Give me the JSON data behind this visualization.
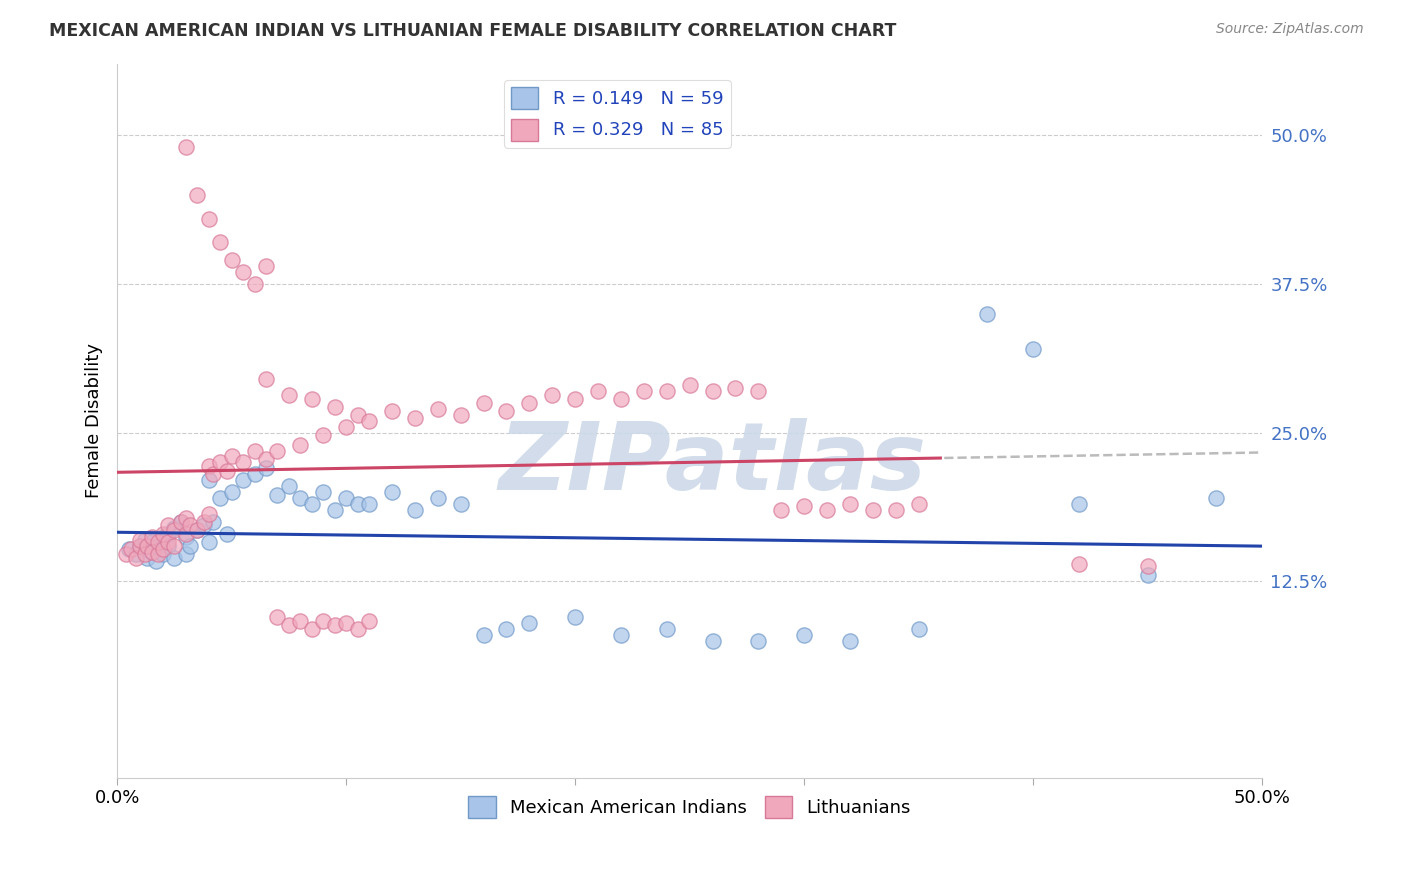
{
  "title": "MEXICAN AMERICAN INDIAN VS LITHUANIAN FEMALE DISABILITY CORRELATION CHART",
  "source": "Source: ZipAtlas.com",
  "ylabel": "Female Disability",
  "ytick_labels": [
    "12.5%",
    "25.0%",
    "37.5%",
    "50.0%"
  ],
  "ytick_values": [
    0.125,
    0.25,
    0.375,
    0.5
  ],
  "xlim": [
    0.0,
    0.5
  ],
  "ylim": [
    -0.04,
    0.56
  ],
  "legend_top": [
    "R = 0.149   N = 59",
    "R = 0.329   N = 85"
  ],
  "legend_bottom": [
    "Mexican American Indians",
    "Lithuanians"
  ],
  "blue_color": "#a8c4e8",
  "pink_color": "#f0a8bc",
  "blue_edge": "#7099c8",
  "pink_edge": "#d87898",
  "blue_line_color": "#2244aa",
  "pink_line_color": "#cc4466",
  "dash_color": "#bbbbbb",
  "watermark": "ZIPatlas",
  "watermark_color": "#cdd9e8",
  "blue_R": 0.149,
  "blue_N": 59,
  "pink_R": 0.329,
  "pink_N": 85,
  "blue_x": [
    0.005,
    0.008,
    0.01,
    0.012,
    0.013,
    0.015,
    0.015,
    0.017,
    0.018,
    0.02,
    0.02,
    0.022,
    0.022,
    0.025,
    0.025,
    0.028,
    0.03,
    0.03,
    0.032,
    0.035,
    0.038,
    0.04,
    0.04,
    0.042,
    0.045,
    0.048,
    0.05,
    0.055,
    0.06,
    0.065,
    0.07,
    0.075,
    0.08,
    0.085,
    0.09,
    0.095,
    0.1,
    0.105,
    0.11,
    0.12,
    0.13,
    0.14,
    0.15,
    0.16,
    0.17,
    0.18,
    0.2,
    0.22,
    0.24,
    0.26,
    0.28,
    0.3,
    0.32,
    0.35,
    0.38,
    0.4,
    0.42,
    0.45,
    0.48
  ],
  "blue_y": [
    0.152,
    0.148,
    0.155,
    0.16,
    0.145,
    0.15,
    0.158,
    0.142,
    0.155,
    0.148,
    0.162,
    0.155,
    0.165,
    0.17,
    0.145,
    0.175,
    0.148,
    0.162,
    0.155,
    0.168,
    0.172,
    0.158,
    0.21,
    0.175,
    0.195,
    0.165,
    0.2,
    0.21,
    0.215,
    0.22,
    0.198,
    0.205,
    0.195,
    0.19,
    0.2,
    0.185,
    0.195,
    0.19,
    0.19,
    0.2,
    0.185,
    0.195,
    0.19,
    0.08,
    0.085,
    0.09,
    0.095,
    0.08,
    0.085,
    0.075,
    0.075,
    0.08,
    0.075,
    0.085,
    0.35,
    0.32,
    0.19,
    0.13,
    0.195
  ],
  "pink_x": [
    0.004,
    0.006,
    0.008,
    0.01,
    0.01,
    0.012,
    0.013,
    0.015,
    0.015,
    0.018,
    0.018,
    0.02,
    0.02,
    0.022,
    0.022,
    0.025,
    0.025,
    0.028,
    0.03,
    0.03,
    0.032,
    0.035,
    0.038,
    0.04,
    0.04,
    0.042,
    0.045,
    0.048,
    0.05,
    0.055,
    0.06,
    0.065,
    0.065,
    0.07,
    0.075,
    0.08,
    0.085,
    0.09,
    0.095,
    0.1,
    0.105,
    0.11,
    0.12,
    0.13,
    0.14,
    0.15,
    0.16,
    0.17,
    0.18,
    0.19,
    0.2,
    0.21,
    0.22,
    0.23,
    0.24,
    0.25,
    0.26,
    0.27,
    0.28,
    0.29,
    0.3,
    0.31,
    0.32,
    0.33,
    0.34,
    0.35,
    0.03,
    0.035,
    0.04,
    0.045,
    0.05,
    0.055,
    0.06,
    0.065,
    0.07,
    0.075,
    0.08,
    0.085,
    0.09,
    0.095,
    0.1,
    0.105,
    0.11,
    0.42,
    0.45
  ],
  "pink_y": [
    0.148,
    0.152,
    0.145,
    0.155,
    0.16,
    0.148,
    0.155,
    0.15,
    0.162,
    0.148,
    0.158,
    0.152,
    0.165,
    0.158,
    0.172,
    0.168,
    0.155,
    0.175,
    0.165,
    0.178,
    0.172,
    0.168,
    0.175,
    0.182,
    0.222,
    0.215,
    0.225,
    0.218,
    0.23,
    0.225,
    0.235,
    0.228,
    0.295,
    0.235,
    0.282,
    0.24,
    0.278,
    0.248,
    0.272,
    0.255,
    0.265,
    0.26,
    0.268,
    0.262,
    0.27,
    0.265,
    0.275,
    0.268,
    0.275,
    0.282,
    0.278,
    0.285,
    0.278,
    0.285,
    0.285,
    0.29,
    0.285,
    0.288,
    0.285,
    0.185,
    0.188,
    0.185,
    0.19,
    0.185,
    0.185,
    0.19,
    0.49,
    0.45,
    0.43,
    0.41,
    0.395,
    0.385,
    0.375,
    0.39,
    0.095,
    0.088,
    0.092,
    0.085,
    0.092,
    0.088,
    0.09,
    0.085,
    0.092,
    0.14,
    0.138
  ]
}
